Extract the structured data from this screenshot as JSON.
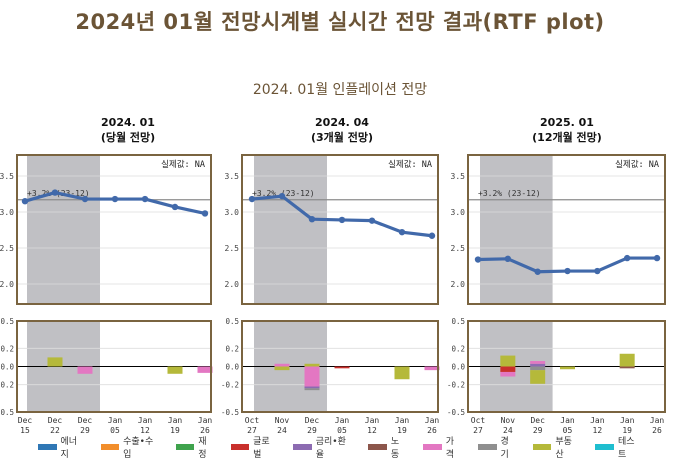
{
  "title": "2024년 01월 전망시계별 실시간 전망 결과(RTF plot)",
  "subtitle": "2024. 01월 인플레이션 전망",
  "chart_data": [
    {
      "type": "line",
      "id": "p1",
      "title_line1": "2024. 01",
      "title_line2": "(당월 전망)",
      "categories": [
        "Dec\n15",
        "Dec\n22",
        "Dec\n29",
        "Jan\n05",
        "Jan\n12",
        "Jan\n19",
        "Jan\n26"
      ],
      "values": [
        3.15,
        3.27,
        3.18,
        3.18,
        3.18,
        3.07,
        2.98
      ],
      "shaded_categories": [
        0,
        2
      ],
      "actual_label": "실제값: NA",
      "reference_value": 3.17,
      "reference_label": "+3.2% (23-12)",
      "ylim": [
        1.8,
        3.8
      ],
      "yticks": [
        "2.0",
        "2.5",
        "3.0",
        "3.5"
      ],
      "yticks_values": [
        2.0,
        2.5,
        3.0,
        3.5
      ],
      "contrib": [
        {
          "category": 1,
          "segments": [
            {
              "component": "부동산",
              "value": 0.1
            }
          ]
        },
        {
          "category": 2,
          "segments": [
            {
              "component": "가격",
              "value": -0.08
            }
          ]
        },
        {
          "category": 5,
          "segments": [
            {
              "component": "부동산",
              "value": -0.08
            }
          ]
        },
        {
          "category": 6,
          "segments": [
            {
              "component": "가격",
              "value": -0.07
            }
          ]
        }
      ],
      "contrib_ylim": [
        -0.5,
        0.5
      ],
      "contrib_yticks": [
        "-0.5",
        "-0.2",
        "0.0",
        "0.2",
        "0.5"
      ],
      "contrib_yticks_values": [
        -0.5,
        -0.2,
        0.0,
        0.2,
        0.5
      ]
    },
    {
      "type": "line",
      "id": "p2",
      "title_line1": "2024. 04",
      "title_line2": "(3개월 전망)",
      "categories": [
        "Oct\n27",
        "Nov\n24",
        "Dec\n29",
        "Jan\n05",
        "Jan\n12",
        "Jan\n19",
        "Jan\n26"
      ],
      "values": [
        3.18,
        3.22,
        2.9,
        2.89,
        2.88,
        2.72,
        2.67
      ],
      "shaded_categories": [
        0,
        2
      ],
      "actual_label": "실제값: NA",
      "reference_value": 3.17,
      "reference_label": "+3.2% (23-12)",
      "ylim": [
        1.8,
        3.8
      ],
      "yticks": [
        "2.0",
        "2.5",
        "3.0",
        "3.5"
      ],
      "yticks_values": [
        2.0,
        2.5,
        3.0,
        3.5
      ],
      "contrib": [
        {
          "category": 1,
          "segments": [
            {
              "component": "가격",
              "value": 0.03
            },
            {
              "component": "부동산",
              "value": -0.04
            }
          ]
        },
        {
          "category": 2,
          "segments": [
            {
              "component": "부동산",
              "value": 0.03
            },
            {
              "component": "가격",
              "value": -0.22
            },
            {
              "component": "금리·환율",
              "value": -0.02
            },
            {
              "component": "경기",
              "value": -0.02
            }
          ]
        },
        {
          "category": 3,
          "segments": [
            {
              "component": "글로벌",
              "value": -0.02
            }
          ]
        },
        {
          "category": 5,
          "segments": [
            {
              "component": "부동산",
              "value": -0.14
            }
          ]
        },
        {
          "category": 6,
          "segments": [
            {
              "component": "가격",
              "value": -0.04
            }
          ]
        }
      ],
      "contrib_ylim": [
        -0.5,
        0.5
      ],
      "contrib_yticks": [
        "-0.5",
        "-0.2",
        "0.0",
        "0.2",
        "0.5"
      ],
      "contrib_yticks_values": [
        -0.5,
        -0.2,
        0.0,
        0.2,
        0.5
      ]
    },
    {
      "type": "line",
      "id": "p3",
      "title_line1": "2025. 01",
      "title_line2": "(12개월 전망)",
      "categories": [
        "Oct\n27",
        "Nov\n24",
        "Dec\n29",
        "Jan\n05",
        "Jan\n12",
        "Jan\n19",
        "Jan\n26"
      ],
      "values": [
        2.34,
        2.35,
        2.17,
        2.18,
        2.18,
        2.36,
        2.36
      ],
      "shaded_categories": [
        0,
        2
      ],
      "actual_label": "실제값: NA",
      "reference_value": 3.17,
      "reference_label": "+3.2% (23-12)",
      "ylim": [
        1.8,
        3.8
      ],
      "yticks": [
        "2.0",
        "2.5",
        "3.0",
        "3.5"
      ],
      "yticks_values": [
        2.0,
        2.5,
        3.0,
        3.5
      ],
      "contrib": [
        {
          "category": 1,
          "segments": [
            {
              "component": "부동산",
              "value": 0.12
            },
            {
              "component": "글로벌",
              "value": -0.06
            },
            {
              "component": "가격",
              "value": -0.05
            }
          ]
        },
        {
          "category": 2,
          "segments": [
            {
              "component": "금리·환율",
              "value": 0.03
            },
            {
              "component": "가격",
              "value": 0.03
            },
            {
              "component": "경기",
              "value": -0.04
            },
            {
              "component": "부동산",
              "value": -0.15
            }
          ]
        },
        {
          "category": 3,
          "segments": [
            {
              "component": "부동산",
              "value": -0.03
            }
          ]
        },
        {
          "category": 5,
          "segments": [
            {
              "component": "부동산",
              "value": 0.14
            },
            {
              "component": "노동",
              "value": -0.02
            }
          ]
        }
      ],
      "contrib_ylim": [
        -0.5,
        0.5
      ],
      "contrib_yticks": [
        "-0.5",
        "-0.2",
        "0.0",
        "0.2",
        "0.5"
      ],
      "contrib_yticks_values": [
        -0.5,
        -0.2,
        0.0,
        0.2,
        0.5
      ]
    }
  ],
  "legend": [
    {
      "label": "에너지",
      "color": "#2f77b5"
    },
    {
      "label": "수출•수입",
      "color": "#f28e2b"
    },
    {
      "label": "재정",
      "color": "#3fa34d"
    },
    {
      "label": "글로벌",
      "color": "#c9302c"
    },
    {
      "label": "금리•환율",
      "color": "#8c6bb1"
    },
    {
      "label": "노동",
      "color": "#8c564b"
    },
    {
      "label": "가격",
      "color": "#e377c2"
    },
    {
      "label": "경기",
      "color": "#8f8f8f"
    },
    {
      "label": "부동산",
      "color": "#b5b93a"
    },
    {
      "label": "테스트",
      "color": "#1fbecf"
    }
  ],
  "component_colors": {
    "에너지": "#2f77b5",
    "수출•수입": "#f28e2b",
    "재정": "#3fa34d",
    "글로벌": "#c9302c",
    "금리·환율": "#8c6bb1",
    "노동": "#8c564b",
    "가격": "#e377c2",
    "경기": "#8f8f8f",
    "부동산": "#b5b93a",
    "테스트": "#1fbecf"
  },
  "colors": {
    "line": "#4169aa",
    "shade": "#c0c0c4",
    "frame": "#7a6440",
    "reference": "#8c8c8c"
  }
}
